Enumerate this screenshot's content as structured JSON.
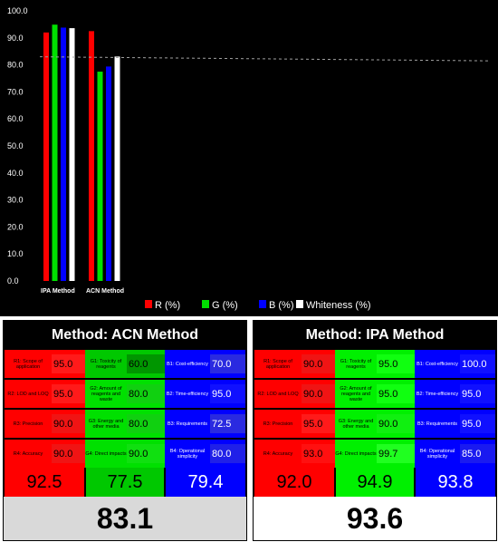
{
  "chart_data": {
    "type": "bar",
    "categories": [
      "IPA Method",
      "ACN Method"
    ],
    "series": [
      {
        "name": "R (%)",
        "color": "#ff0000",
        "values": [
          92.0,
          92.5
        ]
      },
      {
        "name": "G (%)",
        "color": "#00e000",
        "values": [
          94.9,
          77.5
        ]
      },
      {
        "name": "B (%)",
        "color": "#0000ff",
        "values": [
          93.8,
          79.4
        ]
      },
      {
        "name": "Whiteness (%)",
        "color": "#ffffff",
        "values": [
          93.6,
          83.1
        ]
      }
    ],
    "ylim": [
      0,
      100
    ],
    "yticks": [
      "0.0",
      "10.0",
      "20.0",
      "30.0",
      "40.0",
      "50.0",
      "60.0",
      "70.0",
      "80.0",
      "90.0",
      "100.0"
    ],
    "reference_line_start": 83,
    "reference_line_end": 81.5,
    "legend": "bottom",
    "grid": false
  },
  "panels": [
    {
      "title": "Method: ACN Method",
      "red": {
        "items": [
          {
            "label": "R1: Scope of application",
            "value": "95.0"
          },
          {
            "label": "R2: LOD and LOQ",
            "value": "95.0"
          },
          {
            "label": "R3: Precision",
            "value": "90.0"
          },
          {
            "label": "R4: Accuracy",
            "value": "90.0"
          }
        ],
        "sum": "92.5"
      },
      "green": {
        "items": [
          {
            "label": "G1: Toxicity of reagents",
            "value": "60.0"
          },
          {
            "label": "G2: Amount of reagents and waste",
            "value": "80.0"
          },
          {
            "label": "G3: Energy and other media",
            "value": "80.0"
          },
          {
            "label": "G4: Direct impacts",
            "value": "90.0"
          }
        ],
        "sum": "77.5"
      },
      "blue": {
        "items": [
          {
            "label": "B1: Cost-efficiency",
            "value": "70.0"
          },
          {
            "label": "B2: Time-efficiency",
            "value": "95.0"
          },
          {
            "label": "B3: Requirements",
            "value": "72.5"
          },
          {
            "label": "B4: Operational simplicity",
            "value": "80.0"
          }
        ],
        "sum": "79.4"
      },
      "total": "83.1"
    },
    {
      "title": "Method: IPA Method",
      "red": {
        "items": [
          {
            "label": "R1: Scope of application",
            "value": "90.0"
          },
          {
            "label": "R2: LOD and LOQ",
            "value": "90.0"
          },
          {
            "label": "R3: Precision",
            "value": "95.0"
          },
          {
            "label": "R4: Accuracy",
            "value": "93.0"
          }
        ],
        "sum": "92.0"
      },
      "green": {
        "items": [
          {
            "label": "G1: Toxicity of reagents",
            "value": "95.0"
          },
          {
            "label": "G2: Amount of reagents and waste",
            "value": "95.0"
          },
          {
            "label": "G3: Energy and other media",
            "value": "90.0"
          },
          {
            "label": "G4: Direct impacts",
            "value": "99.7"
          }
        ],
        "sum": "94.9"
      },
      "blue": {
        "items": [
          {
            "label": "B1: Cost-efficiency",
            "value": "100.0"
          },
          {
            "label": "B2: Time-efficiency",
            "value": "95.0"
          },
          {
            "label": "B3: Requirements",
            "value": "95.0"
          },
          {
            "label": "B4: Operational simplicity",
            "value": "85.0"
          }
        ],
        "sum": "93.8"
      },
      "total": "93.6"
    }
  ]
}
